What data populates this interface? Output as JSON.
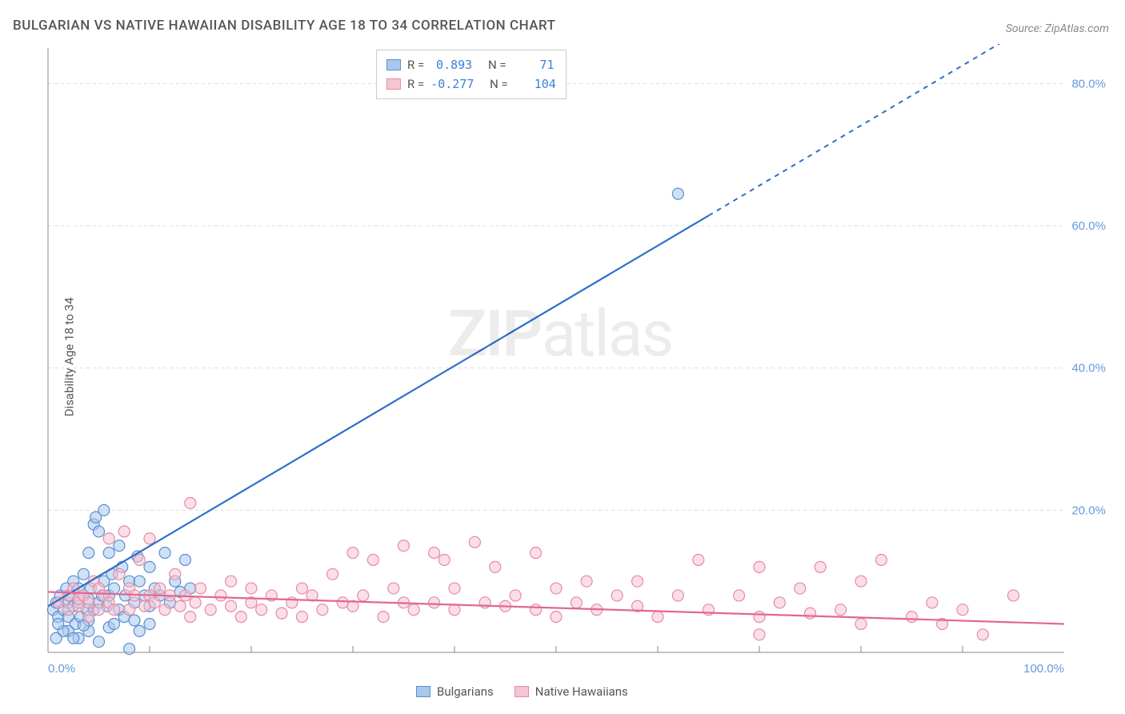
{
  "title": "BULGARIAN VS NATIVE HAWAIIAN DISABILITY AGE 18 TO 34 CORRELATION CHART",
  "source_prefix": "Source: ",
  "source_name": "ZipAtlas.com",
  "ylabel": "Disability Age 18 to 34",
  "watermark_a": "ZIP",
  "watermark_b": "atlas",
  "chart": {
    "type": "scatter+regression",
    "xlim": [
      0,
      100
    ],
    "ylim": [
      0,
      85
    ],
    "xticks": [
      0,
      100
    ],
    "xtick_labels": [
      "0.0%",
      "100.0%"
    ],
    "yticks": [
      20,
      40,
      60,
      80
    ],
    "ytick_labels": [
      "20.0%",
      "40.0%",
      "60.0%",
      "80.0%"
    ],
    "background": "#ffffff",
    "grid_color": "#dddddd",
    "grid_dash": "4,4",
    "axis_color": "#888888",
    "tick_label_color": "#6699dd",
    "marker_radius": 7,
    "marker_stroke_width": 1.2,
    "series": [
      {
        "name": "Bulgarians",
        "fill": "#a9c8ec",
        "stroke": "#5a8fd0",
        "line_color": "#2f6fc7",
        "R": "0.893",
        "N": "71",
        "regression": {
          "x1": 0,
          "y1": 6.5,
          "x2": 100,
          "y2": 91,
          "solid_until_x": 65
        },
        "points": [
          [
            0.5,
            6
          ],
          [
            0.8,
            7
          ],
          [
            1,
            5
          ],
          [
            1.2,
            8
          ],
          [
            1.5,
            6
          ],
          [
            1.8,
            9
          ],
          [
            2,
            7
          ],
          [
            2,
            5
          ],
          [
            2.2,
            8
          ],
          [
            2.5,
            6.5
          ],
          [
            2.5,
            10
          ],
          [
            2.7,
            4
          ],
          [
            3,
            7
          ],
          [
            3,
            9
          ],
          [
            3.2,
            5
          ],
          [
            3.5,
            8
          ],
          [
            3.5,
            11
          ],
          [
            3.8,
            6
          ],
          [
            4,
            7.5
          ],
          [
            4,
            14
          ],
          [
            4.2,
            9
          ],
          [
            4.5,
            18
          ],
          [
            4.5,
            6
          ],
          [
            4.7,
            19
          ],
          [
            5,
            7
          ],
          [
            5,
            17
          ],
          [
            5.3,
            8
          ],
          [
            5.5,
            20
          ],
          [
            5.5,
            10
          ],
          [
            5.8,
            6.5
          ],
          [
            6,
            14
          ],
          [
            6,
            8
          ],
          [
            6.3,
            11
          ],
          [
            6.5,
            9
          ],
          [
            7,
            6
          ],
          [
            7,
            15
          ],
          [
            7.3,
            12
          ],
          [
            7.6,
            8
          ],
          [
            8,
            0.5
          ],
          [
            8,
            10
          ],
          [
            8.5,
            7
          ],
          [
            8.8,
            13.5
          ],
          [
            9,
            10
          ],
          [
            9.5,
            8
          ],
          [
            10,
            6.5
          ],
          [
            10,
            12
          ],
          [
            10.5,
            9
          ],
          [
            11,
            8
          ],
          [
            11.5,
            14
          ],
          [
            12,
            7
          ],
          [
            12.5,
            10
          ],
          [
            13,
            8.5
          ],
          [
            13.5,
            13
          ],
          [
            14,
            9
          ],
          [
            2,
            3
          ],
          [
            3,
            2
          ],
          [
            4,
            3
          ],
          [
            5,
            1.5
          ],
          [
            6,
            3.5
          ],
          [
            4,
            4.5
          ],
          [
            2.5,
            2
          ],
          [
            1.5,
            3
          ],
          [
            0.8,
            2
          ],
          [
            1,
            4
          ],
          [
            6.5,
            4
          ],
          [
            7.5,
            5
          ],
          [
            8.5,
            4.5
          ],
          [
            9,
            3
          ],
          [
            10,
            4
          ],
          [
            3.5,
            3.8
          ],
          [
            62,
            64.5
          ]
        ]
      },
      {
        "name": "Native Hawaiians",
        "fill": "#f6c5d2",
        "stroke": "#e889a5",
        "line_color": "#e26891",
        "R": "-0.277",
        "N": "104",
        "regression": {
          "x1": 0,
          "y1": 8.5,
          "x2": 100,
          "y2": 4.0,
          "solid_until_x": 100
        },
        "points": [
          [
            1,
            7
          ],
          [
            2,
            6
          ],
          [
            2,
            8
          ],
          [
            2.5,
            9
          ],
          [
            3,
            6.5
          ],
          [
            3,
            7.5
          ],
          [
            3.5,
            8
          ],
          [
            4,
            5
          ],
          [
            4,
            7
          ],
          [
            4.5,
            10
          ],
          [
            5,
            6
          ],
          [
            5,
            9
          ],
          [
            5.5,
            8
          ],
          [
            6,
            7
          ],
          [
            6,
            16
          ],
          [
            6.5,
            6
          ],
          [
            7,
            11
          ],
          [
            7.5,
            17
          ],
          [
            8,
            6
          ],
          [
            8,
            9
          ],
          [
            8.5,
            8
          ],
          [
            9,
            13
          ],
          [
            9.5,
            6.5
          ],
          [
            10,
            8
          ],
          [
            10,
            16
          ],
          [
            10.5,
            7
          ],
          [
            11,
            9
          ],
          [
            11.5,
            6
          ],
          [
            12,
            8
          ],
          [
            12.5,
            11
          ],
          [
            13,
            6.5
          ],
          [
            13.5,
            8
          ],
          [
            14,
            5
          ],
          [
            14,
            21
          ],
          [
            14.5,
            7
          ],
          [
            15,
            9
          ],
          [
            16,
            6
          ],
          [
            17,
            8
          ],
          [
            18,
            10
          ],
          [
            18,
            6.5
          ],
          [
            19,
            5
          ],
          [
            20,
            9
          ],
          [
            20,
            7
          ],
          [
            21,
            6
          ],
          [
            22,
            8
          ],
          [
            23,
            5.5
          ],
          [
            24,
            7
          ],
          [
            25,
            9
          ],
          [
            25,
            5
          ],
          [
            26,
            8
          ],
          [
            27,
            6
          ],
          [
            28,
            11
          ],
          [
            29,
            7
          ],
          [
            30,
            14
          ],
          [
            30,
            6.5
          ],
          [
            31,
            8
          ],
          [
            32,
            13
          ],
          [
            33,
            5
          ],
          [
            34,
            9
          ],
          [
            35,
            15
          ],
          [
            35,
            7
          ],
          [
            36,
            6
          ],
          [
            38,
            14
          ],
          [
            38,
            7
          ],
          [
            39,
            13
          ],
          [
            40,
            6
          ],
          [
            40,
            9
          ],
          [
            42,
            15.5
          ],
          [
            43,
            7
          ],
          [
            44,
            12
          ],
          [
            45,
            6.5
          ],
          [
            46,
            8
          ],
          [
            48,
            14
          ],
          [
            48,
            6
          ],
          [
            50,
            9
          ],
          [
            50,
            5
          ],
          [
            52,
            7
          ],
          [
            53,
            10
          ],
          [
            54,
            6
          ],
          [
            56,
            8
          ],
          [
            58,
            10
          ],
          [
            58,
            6.5
          ],
          [
            60,
            5
          ],
          [
            62,
            8
          ],
          [
            64,
            13
          ],
          [
            65,
            6
          ],
          [
            68,
            8
          ],
          [
            70,
            12
          ],
          [
            70,
            5
          ],
          [
            72,
            7
          ],
          [
            74,
            9
          ],
          [
            75,
            5.5
          ],
          [
            76,
            12
          ],
          [
            78,
            6
          ],
          [
            80,
            4
          ],
          [
            80,
            10
          ],
          [
            82,
            13
          ],
          [
            85,
            5
          ],
          [
            87,
            7
          ],
          [
            88,
            4
          ],
          [
            90,
            6
          ],
          [
            95,
            8
          ],
          [
            92,
            2.5
          ],
          [
            70,
            2.5
          ]
        ]
      }
    ]
  },
  "stats_box": {
    "rows": [
      {
        "swatch_fill": "#a9c8ec",
        "swatch_stroke": "#5a8fd0",
        "r_label": "R =",
        "r_val": "0.893",
        "n_label": "N =",
        "n_val": "71"
      },
      {
        "swatch_fill": "#f6c5d2",
        "swatch_stroke": "#e889a5",
        "r_label": "R =",
        "r_val": "-0.277",
        "n_label": "N =",
        "n_val": "104"
      }
    ]
  },
  "bottom_legend": [
    {
      "swatch_fill": "#a9c8ec",
      "swatch_stroke": "#5a8fd0",
      "label": "Bulgarians"
    },
    {
      "swatch_fill": "#f6c5d2",
      "swatch_stroke": "#e889a5",
      "label": "Native Hawaiians"
    }
  ]
}
